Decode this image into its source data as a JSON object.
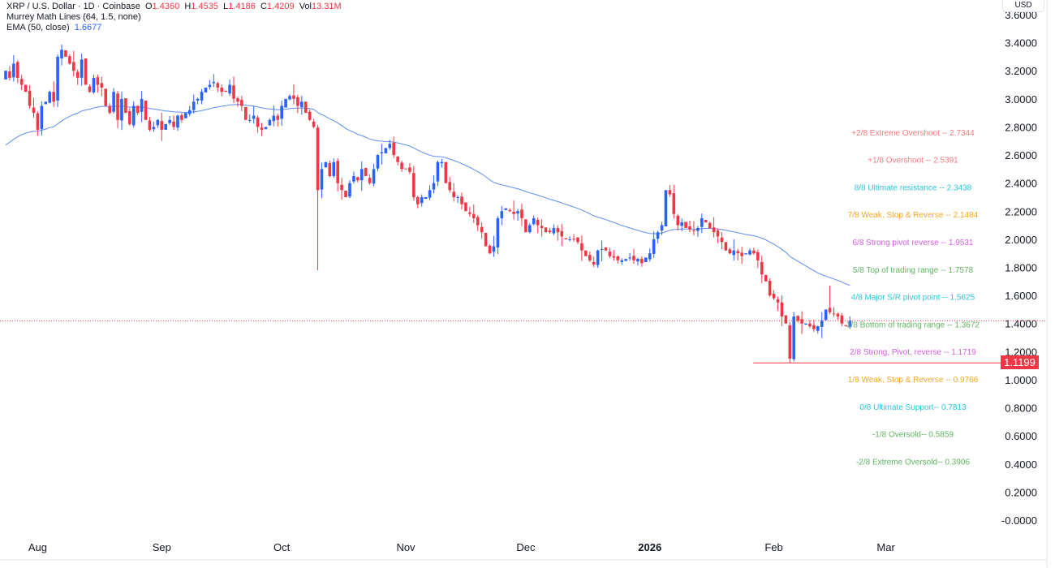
{
  "header": {
    "symbol_line": "XRP / U.S. Dollar · 1D · Coinbase",
    "ohlc": {
      "o_label": "O",
      "o": "1.4360",
      "h_label": "H",
      "h": "1.4535",
      "l_label": "L",
      "l": "1.4186",
      "c_label": "C",
      "c": "1.4209",
      "vol_label": "Vol",
      "vol": "13.31M"
    },
    "indicator_1": "Murrey Math Lines (64, 1.5, none)",
    "indicator_2_name": "EMA (50, close)",
    "indicator_2_value": "1.6677",
    "currency": "USD"
  },
  "colors": {
    "up": "#2962ff",
    "down": "#f23645",
    "ema": "#5b8ff0",
    "grid": "#f0f3fa"
  },
  "chart_data": {
    "type": "candlestick",
    "title": "XRP / U.S. Dollar · 1D · Coinbase",
    "start_date": "2025-07-24",
    "ylim": [
      -0.05,
      3.7
    ],
    "y_ticks": [
      "3.6000",
      "3.4000",
      "3.2000",
      "3.0000",
      "2.8000",
      "2.6000",
      "2.4000",
      "2.2000",
      "2.0000",
      "1.8000",
      "1.6000",
      "1.4000",
      "1.2000",
      "1.0000",
      "0.8000",
      "0.6000",
      "0.4000",
      "0.2000",
      "-0.0000"
    ],
    "y_tick_values": [
      3.6,
      3.4,
      3.2,
      3.0,
      2.8,
      2.6,
      2.4,
      2.2,
      2.0,
      1.8,
      1.6,
      1.4,
      1.2,
      1.0,
      0.8,
      0.6,
      0.4,
      0.2,
      0.0
    ],
    "x_ticks": [
      {
        "label": "Aug",
        "day": 8
      },
      {
        "label": "Sep",
        "day": 39
      },
      {
        "label": "Oct",
        "day": 69
      },
      {
        "label": "Nov",
        "day": 100
      },
      {
        "label": "Dec",
        "day": 130
      },
      {
        "label": "2026",
        "day": 161,
        "bold": true
      },
      {
        "label": "Feb",
        "day": 192
      },
      {
        "label": "Mar",
        "day": 220
      }
    ],
    "closes": [
      3.2,
      3.15,
      3.25,
      3.15,
      3.1,
      3.05,
      2.95,
      2.9,
      2.78,
      2.95,
      2.98,
      3.05,
      2.98,
      3.3,
      3.35,
      3.3,
      3.25,
      3.2,
      3.15,
      3.28,
      3.1,
      3.05,
      3.15,
      3.1,
      3.08,
      2.95,
      2.9,
      3.05,
      2.85,
      3.0,
      2.9,
      2.82,
      2.95,
      2.9,
      3.0,
      2.85,
      2.78,
      2.8,
      2.85,
      2.78,
      2.82,
      2.85,
      2.8,
      2.88,
      2.85,
      2.9,
      2.92,
      2.98,
      3.0,
      3.05,
      3.08,
      3.1,
      3.12,
      3.08,
      3.05,
      3.05,
      3.1,
      3.0,
      2.98,
      2.95,
      2.85,
      2.85,
      2.88,
      2.8,
      2.78,
      2.8,
      2.85,
      2.88,
      2.85,
      2.95,
      3.0,
      3.02,
      3.0,
      2.95,
      2.98,
      2.9,
      2.85,
      2.8,
      2.35,
      2.5,
      2.55,
      2.45,
      2.55,
      2.4,
      2.35,
      2.3,
      2.4,
      2.45,
      2.42,
      2.5,
      2.45,
      2.4,
      2.5,
      2.6,
      2.62,
      2.65,
      2.68,
      2.6,
      2.55,
      2.5,
      2.5,
      2.48,
      2.3,
      2.25,
      2.3,
      2.3,
      2.35,
      2.4,
      2.55,
      2.55,
      2.4,
      2.35,
      2.3,
      2.3,
      2.25,
      2.2,
      2.18,
      2.15,
      2.1,
      2.05,
      1.95,
      1.9,
      1.95,
      2.15,
      2.2,
      2.22,
      2.2,
      2.18,
      2.2,
      2.15,
      2.05,
      2.1,
      2.15,
      2.1,
      2.08,
      2.05,
      2.05,
      2.08,
      2.05,
      2.02,
      2.0,
      2.0,
      2.0,
      1.98,
      1.92,
      1.88,
      1.85,
      1.82,
      1.92,
      1.93,
      1.92,
      1.88,
      1.87,
      1.85,
      1.85,
      1.86,
      1.87,
      1.85,
      1.86,
      1.83,
      1.87,
      1.9,
      2.0,
      2.05,
      2.1,
      2.35,
      2.32,
      2.18,
      2.1,
      2.12,
      2.08,
      2.07,
      2.06,
      2.08,
      2.15,
      2.12,
      2.08,
      2.05,
      2.02,
      1.98,
      1.92,
      1.9,
      1.92,
      1.9,
      1.88,
      1.9,
      1.92,
      1.9,
      1.85,
      1.75,
      1.7,
      1.6,
      1.58,
      1.55,
      1.45,
      1.4,
      1.15,
      1.45,
      1.42,
      1.4,
      1.4,
      1.38,
      1.36,
      1.38,
      1.42,
      1.5,
      1.48,
      1.47,
      1.45,
      1.4,
      1.38,
      1.42
    ],
    "first_open": 3.15,
    "wick_overrides": [
      {
        "day": 78,
        "low": 1.78
      },
      {
        "day": 196,
        "low": 1.12
      },
      {
        "day": 206,
        "high": 1.67
      }
    ],
    "ema": {
      "period": 50,
      "seed": 2.65,
      "last": 1.6677
    },
    "current_price": 1.42,
    "low_marker": {
      "value": "1.1199",
      "price": 1.1199,
      "from_day": 196
    },
    "murrey_lines": [
      {
        "label": "+2/8 Extreme Overshoot --  2.7344",
        "value": 2.7344,
        "color": "#f27a7e"
      },
      {
        "label": "+1/8 Overshoot --  2.5391",
        "value": 2.5391,
        "color": "#f27a7e"
      },
      {
        "label": "8/8 Ultimate resistance --  2.3438",
        "value": 2.3438,
        "color": "#2cc4dc"
      },
      {
        "label": "7/8 Weak, Stop & Reverse --  2.1484",
        "value": 2.1484,
        "color": "#f5a623"
      },
      {
        "label": "6/8 Strong pivot reverse --  1.9531",
        "value": 1.9531,
        "color": "#d35ee0"
      },
      {
        "label": "5/8 Top of trading range --  1.7578",
        "value": 1.7578,
        "color": "#5fb65f"
      },
      {
        "label": "4/8 Major S/R pivot point --  1.5625",
        "value": 1.5625,
        "color": "#2cc4dc"
      },
      {
        "label": "3/8 Bottom of trading range --  1.3672",
        "value": 1.3672,
        "color": "#5fb65f"
      },
      {
        "label": "2/8 Strong, Pivot, reverse --  1.1719",
        "value": 1.1719,
        "color": "#d35ee0"
      },
      {
        "label": "1/8 Weak, Stop & Reverse --  0.9766",
        "value": 0.9766,
        "color": "#f5a623"
      },
      {
        "label": "0/8 Ultimate Support--  0.7813",
        "value": 0.7813,
        "color": "#2cc4dc"
      },
      {
        "label": "-1/8 Oversold--  0.5859",
        "value": 0.5859,
        "color": "#5fb65f"
      },
      {
        "label": "-2/8 Extreme Oversold--  0.3906",
        "value": 0.3906,
        "color": "#5fb65f"
      }
    ]
  }
}
